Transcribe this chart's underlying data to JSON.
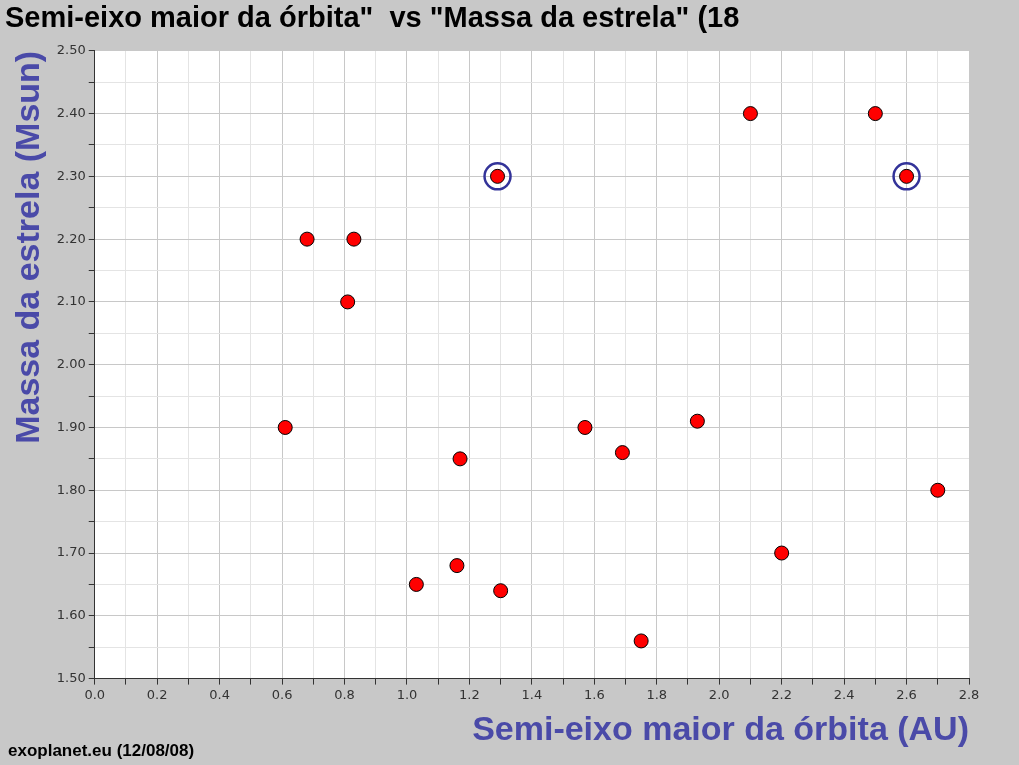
{
  "chart_data": {
    "type": "scatter",
    "title": "Semi-eixo maior da órbita\"  vs \"Massa da estrela\" (18",
    "xlabel": "Semi-eixo maior da órbita (AU)",
    "ylabel": "Massa da estrela (Msun)",
    "annotations": [
      "exoplanet.eu (12/08/08)"
    ],
    "series": [
      {
        "color": "#ff0000",
        "x": [
          0.61,
          0.68,
          0.83,
          0.81,
          1.03,
          1.16,
          1.17,
          1.29,
          1.3,
          1.57,
          1.69,
          1.75,
          1.93,
          2.1,
          2.2,
          2.5,
          2.6,
          2.7
        ],
        "values": [
          1.9,
          2.2,
          2.2,
          2.1,
          1.65,
          1.68,
          1.85,
          2.3,
          1.64,
          1.9,
          1.86,
          1.56,
          1.91,
          2.4,
          1.7,
          2.4,
          2.3,
          1.8
        ]
      },
      {
        "color": "#333399",
        "x": [
          1.29,
          2.6
        ],
        "values": [
          2.3,
          2.3
        ]
      }
    ],
    "xlim": [
      0,
      2.8
    ],
    "xticks": [
      {
        "value": 0,
        "label": "0.0"
      },
      {
        "value": 0.1,
        "label": null
      },
      {
        "value": 0.2,
        "label": "0.2"
      },
      {
        "value": 0.3,
        "label": null
      },
      {
        "value": 0.4,
        "label": "0.4"
      },
      {
        "value": 0.5,
        "label": null
      },
      {
        "value": 0.6,
        "label": "0.6"
      },
      {
        "value": 0.7,
        "label": null
      },
      {
        "value": 0.8,
        "label": "0.8"
      },
      {
        "value": 0.9,
        "label": null
      },
      {
        "value": 1,
        "label": "1.0"
      },
      {
        "value": 1.1,
        "label": null
      },
      {
        "value": 1.2,
        "label": "1.2"
      },
      {
        "value": 1.3,
        "label": null
      },
      {
        "value": 1.4,
        "label": "1.4"
      },
      {
        "value": 1.5,
        "label": null
      },
      {
        "value": 1.6,
        "label": "1.6"
      },
      {
        "value": 1.7,
        "label": null
      },
      {
        "value": 1.8,
        "label": "1.8"
      },
      {
        "value": 1.9,
        "label": null
      },
      {
        "value": 2,
        "label": "2.0"
      },
      {
        "value": 2.1,
        "label": null
      },
      {
        "value": 2.2,
        "label": "2.2"
      },
      {
        "value": 2.3,
        "label": null
      },
      {
        "value": 2.4,
        "label": "2.4"
      },
      {
        "value": 2.5,
        "label": null
      },
      {
        "value": 2.6,
        "label": "2.6"
      },
      {
        "value": 2.7,
        "label": null
      },
      {
        "value": 2.8,
        "label": "2.8"
      }
    ],
    "ylim": [
      1.5,
      2.5
    ],
    "yticks": [
      {
        "value": 1.5,
        "label": "1.50"
      },
      {
        "value": 1.55,
        "label": null
      },
      {
        "value": 1.6,
        "label": "1.60"
      },
      {
        "value": 1.65,
        "label": null
      },
      {
        "value": 1.7,
        "label": "1.70"
      },
      {
        "value": 1.75,
        "label": null
      },
      {
        "value": 1.8,
        "label": "1.80"
      },
      {
        "value": 1.85,
        "label": null
      },
      {
        "value": 1.9,
        "label": "1.90"
      },
      {
        "value": 1.95,
        "label": null
      },
      {
        "value": 2,
        "label": "2.00"
      },
      {
        "value": 2.05,
        "label": null
      },
      {
        "value": 2.1,
        "label": "2.10"
      },
      {
        "value": 2.15,
        "label": null
      },
      {
        "value": 2.2,
        "label": "2.20"
      },
      {
        "value": 2.25,
        "label": null
      },
      {
        "value": 2.3,
        "label": "2.30"
      },
      {
        "value": 2.35,
        "label": null
      },
      {
        "value": 2.4,
        "label": "2.40"
      },
      {
        "value": 2.45,
        "label": null
      },
      {
        "value": 2.5,
        "label": "2.50"
      }
    ],
    "grid": true,
    "legend": false,
    "marker": "circle"
  }
}
